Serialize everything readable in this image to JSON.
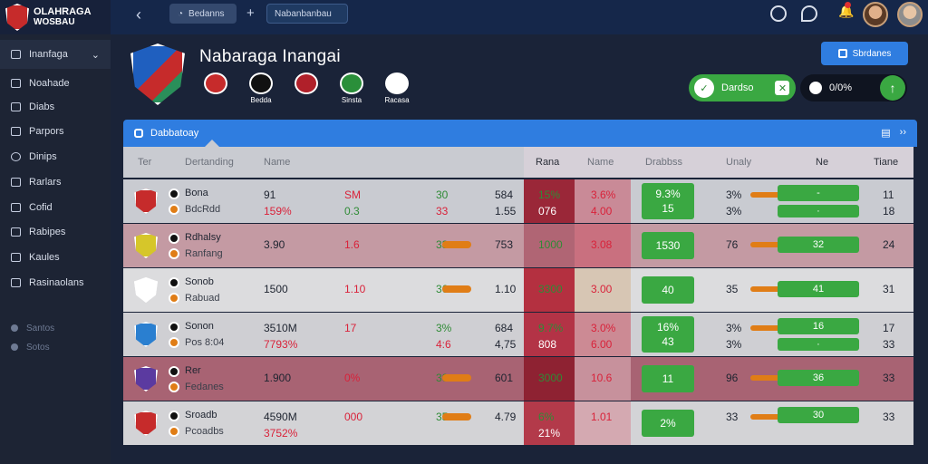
{
  "brand": {
    "line1": "OLAHRAGA",
    "line2": "WOSBAU"
  },
  "topbar": {
    "tab_label": "Bedanns",
    "search_text": "Nabanbanbau"
  },
  "sidebar": {
    "dropdown": "Inanfaga",
    "items": [
      "Noahade",
      "Diabs",
      "Parpors",
      "Dinips",
      "Rarlars",
      "Cofid",
      "Rabipes",
      "Kaules",
      "Rasinaolans"
    ],
    "secondary": [
      "Santos",
      "Sotos"
    ]
  },
  "hero": {
    "title": "Nabaraga Inangai",
    "clubs": [
      {
        "label": "",
        "color": "#c62b2b"
      },
      {
        "label": "Bedda",
        "color": "#111111"
      },
      {
        "label": "",
        "color": "#b0202a"
      },
      {
        "label": "Sinsta",
        "color": "#2a8f3a"
      },
      {
        "label": "Racasa",
        "color": "#ffffff"
      }
    ],
    "button": "Sbrdanes",
    "pill_green": "Dardso",
    "pill_dark": "0/0%"
  },
  "panel": {
    "title": "Dabbatoay"
  },
  "table": {
    "headers": [
      "Ter",
      "Dertanding",
      "Name",
      "Rana",
      "Name",
      "Drabbss",
      "Unaly",
      "Ne",
      "Tiane"
    ],
    "rows": [
      {
        "name": "Bona",
        "sub": "BdcRdd",
        "c1": "91",
        "c1b": "159%",
        "c2": "SM",
        "c2b": "0.3",
        "c3": "30",
        "c3b": "33",
        "c4": "584",
        "c4b": "1.55",
        "c5": "15%",
        "c5b": "076",
        "c6": "3.6%",
        "c6b": "4.00",
        "g1": "9.3%",
        "g2": "15",
        "u1": "3%",
        "u2": "3%",
        "p1": "-",
        "p2": "·",
        "t1": "11",
        "t2": "18",
        "crest": "#c62b2b",
        "bg": "#c9cbd1",
        "d1": "#9a2738",
        "d2": "#c98a97"
      },
      {
        "name": "Rdhalsy",
        "sub": "Ranfang",
        "c1": "3.90",
        "c1b": "",
        "c2": "1.6",
        "c2b": "",
        "c3": "33",
        "c3b": "",
        "c4": "753",
        "c4b": "",
        "c5": "1000",
        "c5b": "",
        "c6": "3.08",
        "c6b": "",
        "g1": "1530",
        "g2": "",
        "u1": "76",
        "u2": "",
        "p1": "32",
        "p2": "",
        "t1": "24",
        "t2": "",
        "crest": "#d6c62a",
        "bg": "#c49aa3",
        "d1": "#b06574",
        "d2": "#c9707f"
      },
      {
        "name": "Sonob",
        "sub": "Rabuad",
        "c1": "1500",
        "c1b": "",
        "c2": "1.10",
        "c2b": "",
        "c3": "36",
        "c3b": "",
        "c4": "1.10",
        "c4b": "",
        "c5": "3300",
        "c5b": "",
        "c6": "3.00",
        "c6b": "",
        "g1": "40",
        "g2": "",
        "u1": "35",
        "u2": "",
        "p1": "41",
        "p2": "",
        "t1": "31",
        "t2": "",
        "crest": "#ffffff",
        "bg": "#dcdcde",
        "d1": "#b43040",
        "d2": "#d7c6b4"
      },
      {
        "name": "Sonon",
        "sub": "Pos 8:04",
        "c1": "3510M",
        "c1b": "7793%",
        "c2": "17",
        "c2b": "",
        "c3": "3%",
        "c3b": "4:6",
        "c4": "684",
        "c4b": "4,75",
        "c5": "9.7%",
        "c5b": "808",
        "c6": "3.0%",
        "c6b": "6.00",
        "g1": "16%",
        "g2": "43",
        "u1": "3%",
        "u2": "3%",
        "p1": "16",
        "p2": "·",
        "t1": "17",
        "t2": "33",
        "crest": "#2a7fd0",
        "bg": "#cfcfd3",
        "d1": "#b33346",
        "d2": "#cc8a94"
      },
      {
        "name": "Rer",
        "sub": "Fedanes",
        "c1": "1.900",
        "c1b": "",
        "c2": "0%",
        "c2b": "",
        "c3": "30",
        "c3b": "",
        "c4": "601",
        "c4b": "",
        "c5": "3000",
        "c5b": "",
        "c6": "10.6",
        "c6b": "",
        "g1": "11",
        "g2": "",
        "u1": "96",
        "u2": "",
        "p1": "36",
        "p2": "",
        "t1": "33",
        "t2": "",
        "crest": "#5b3aa0",
        "bg": "#a86373",
        "d1": "#8e2232",
        "d2": "#c7919c"
      },
      {
        "name": "Sroadb",
        "sub": "Pcoadbs",
        "c1": "4590M",
        "c1b": "3752%",
        "c2": "000",
        "c2b": "",
        "c3": "35",
        "c3b": "",
        "c4": "4.79",
        "c4b": "",
        "c5": "6%",
        "c5b": "21%",
        "c6": "1.01",
        "c6b": "",
        "g1": "2%",
        "g2": "",
        "u1": "33",
        "u2": "",
        "p1": "30",
        "p2": "",
        "t1": "33",
        "t2": "",
        "crest": "#c62b2b",
        "bg": "#d3d3d6",
        "d1": "#b33a4a",
        "d2": "#d4a9b1"
      }
    ]
  }
}
